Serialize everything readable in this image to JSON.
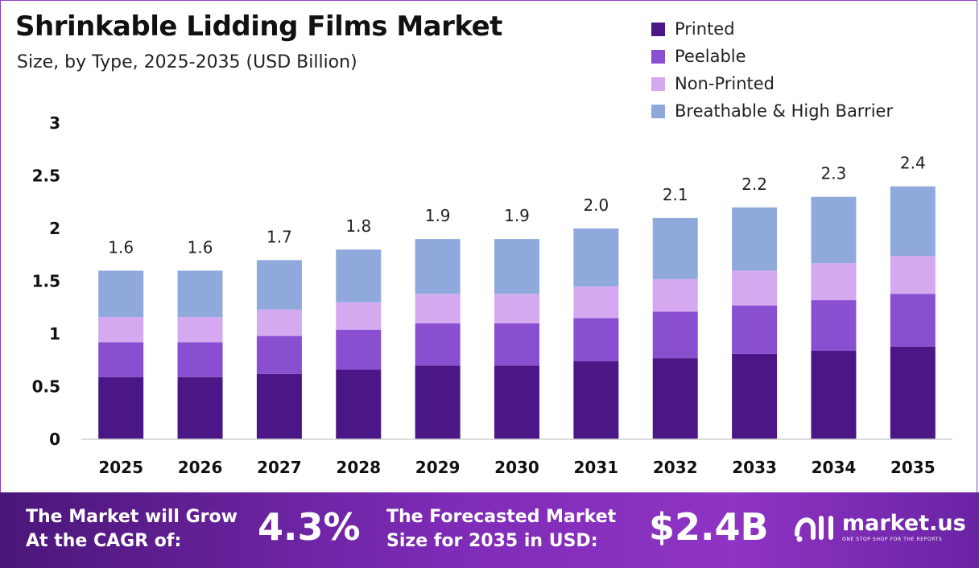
{
  "header": {
    "title": "Shrinkable Lidding Films Market",
    "subtitle": "Size, by Type, 2025-2035 (USD Billion)"
  },
  "chart_data": {
    "type": "bar",
    "stacked": true,
    "categories": [
      "2025",
      "2026",
      "2027",
      "2028",
      "2029",
      "2030",
      "2031",
      "2032",
      "2033",
      "2034",
      "2035"
    ],
    "series": [
      {
        "name": "Printed",
        "color": "#4b1685",
        "values": [
          0.59,
          0.59,
          0.62,
          0.66,
          0.7,
          0.7,
          0.74,
          0.77,
          0.81,
          0.84,
          0.88
        ]
      },
      {
        "name": "Peelable",
        "color": "#8a4fd0",
        "values": [
          0.33,
          0.33,
          0.36,
          0.38,
          0.4,
          0.4,
          0.41,
          0.44,
          0.46,
          0.48,
          0.5
        ]
      },
      {
        "name": "Non-Printed",
        "color": "#d4a9ef",
        "values": [
          0.24,
          0.24,
          0.25,
          0.26,
          0.28,
          0.28,
          0.3,
          0.31,
          0.33,
          0.35,
          0.36
        ]
      },
      {
        "name": "Breathable & High Barrier",
        "color": "#8fa9dc",
        "values": [
          0.44,
          0.44,
          0.47,
          0.5,
          0.52,
          0.52,
          0.55,
          0.58,
          0.6,
          0.63,
          0.66
        ]
      }
    ],
    "totals": [
      "1.6",
      "1.6",
      "1.7",
      "1.8",
      "1.9",
      "1.9",
      "2.0",
      "2.1",
      "2.2",
      "2.3",
      "2.4"
    ],
    "yticks": [
      "0",
      "0.5",
      "1",
      "1.5",
      "2",
      "2.5",
      "3"
    ],
    "ylim": [
      0,
      3
    ],
    "legend_position": "top-right",
    "grid": false
  },
  "banner": {
    "cagr_label_line1": "The Market will Grow",
    "cagr_label_line2": "At the CAGR of:",
    "cagr_value": "4.3%",
    "forecast_label_line1": "The Forecasted Market",
    "forecast_label_line2": "Size for 2035 in USD:",
    "forecast_value": "$2.4B",
    "logo_text": "market.us",
    "logo_tagline": "ONE STOP SHOP FOR THE REPORTS"
  }
}
